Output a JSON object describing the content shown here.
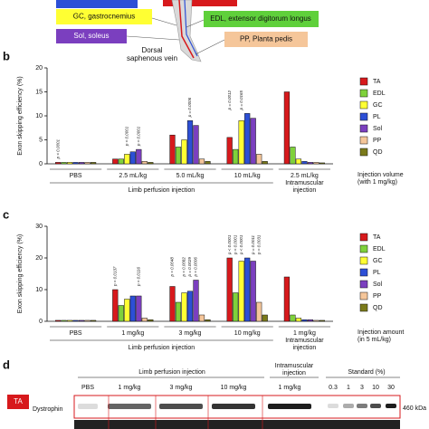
{
  "diagram": {
    "gc": "GC, gastrocnemius",
    "edl": "EDL, extensor digitorum longus",
    "sol": "Sol, soleus",
    "pp": "PP, Planta pedis",
    "vein": [
      "Dorsal",
      "saphenous vein"
    ]
  },
  "chart_data": [
    {
      "type": "bar",
      "panel": "b",
      "ylabel": "Exon skipping efficiency (%)",
      "categories": [
        "PBS",
        "2.5 mL/kg",
        "5.0 mL/kg",
        "10 mL/kg",
        "2.5 mL/kg"
      ],
      "sections": [
        [
          "Limb perfusion injection"
        ],
        [
          "Intramuscular",
          "injection"
        ]
      ],
      "xlabel": [
        "Injection volume",
        "(with 1 mg/kg)"
      ],
      "ylim": [
        0,
        20
      ],
      "yticks": [
        0,
        5,
        10,
        15,
        20
      ],
      "series": [
        {
          "name": "TA",
          "color": "#d7191c",
          "values": [
            0.3,
            1.0,
            6.0,
            5.5,
            15.0
          ]
        },
        {
          "name": "EDL",
          "color": "#7fd13b",
          "values": [
            0.3,
            1.0,
            3.5,
            3.0,
            3.5
          ]
        },
        {
          "name": "GC",
          "color": "#ffff33",
          "values": [
            0.3,
            2.0,
            5.0,
            9.0,
            1.0
          ]
        },
        {
          "name": "PL",
          "color": "#2c4fd6",
          "values": [
            0.3,
            2.5,
            9.0,
            10.5,
            0.5
          ]
        },
        {
          "name": "Sol",
          "color": "#7b3fbf",
          "values": [
            0.3,
            3.0,
            8.0,
            9.5,
            0.3
          ]
        },
        {
          "name": "PP",
          "color": "#f5c69a",
          "values": [
            0.3,
            0.5,
            1.0,
            2.0,
            0.3
          ]
        },
        {
          "name": "QD",
          "color": "#7a7a1a",
          "values": [
            0.3,
            0.3,
            0.5,
            0.5,
            0.2
          ]
        }
      ],
      "annotations": [
        "p < 0.0001",
        "p < 0.0001",
        "p = 0.0001",
        "p = 0.0006",
        "p = 0.0012",
        "p = 0.0165"
      ]
    },
    {
      "type": "bar",
      "panel": "c",
      "ylabel": "Exon skipping efficiency (%)",
      "categories": [
        "PBS",
        "1 mg/kg",
        "3 mg/kg",
        "10 mg/kg",
        "1 mg/kg"
      ],
      "sections": [
        [
          "Limb perfusion injection"
        ],
        [
          "Intramuscular",
          "injection"
        ]
      ],
      "xlabel": [
        "Injection amount",
        "(in 5 mL/kg)"
      ],
      "ylim": [
        0,
        30
      ],
      "yticks": [
        0,
        10,
        20,
        30
      ],
      "series": [
        {
          "name": "TA",
          "color": "#d7191c",
          "values": [
            0.3,
            10,
            11,
            20,
            14
          ]
        },
        {
          "name": "EDL",
          "color": "#7fd13b",
          "values": [
            0.3,
            5,
            6,
            9,
            2
          ]
        },
        {
          "name": "GC",
          "color": "#ffff33",
          "values": [
            0.3,
            7,
            9,
            19,
            1
          ]
        },
        {
          "name": "PL",
          "color": "#2c4fd6",
          "values": [
            0.3,
            8,
            9.5,
            20,
            0.5
          ]
        },
        {
          "name": "Sol",
          "color": "#7b3fbf",
          "values": [
            0.3,
            8,
            13,
            19,
            0.5
          ]
        },
        {
          "name": "PP",
          "color": "#f5c69a",
          "values": [
            0.3,
            1,
            2,
            6,
            0.3
          ]
        },
        {
          "name": "QD",
          "color": "#7a7a1a",
          "values": [
            0.3,
            0.5,
            0.5,
            2,
            0.3
          ]
        }
      ],
      "annotations": [
        "p = 0.0137",
        "p = 0.0116",
        "p = 0.0048",
        "p = 0.0082",
        "p = 0.0029",
        "p = 0.0006",
        "p < 0.0001",
        "p < 0.0001",
        "p < 0.0001",
        "p = 0.0011",
        "p = 0.0031"
      ]
    }
  ],
  "blot": {
    "panel": "d",
    "header": [
      "Limb perfusion injection",
      [
        "Intramuscular",
        "injection"
      ],
      "Standard (%)"
    ],
    "lanes": [
      "PBS",
      "1 mg/kg",
      "3 mg/kg",
      "10 mg/kg",
      "1 mg/kg"
    ],
    "standards": [
      "0.3",
      "1",
      "3",
      "10",
      "30"
    ],
    "muscle": "TA",
    "protein": "Dystrophin",
    "size": "460 kDa"
  }
}
